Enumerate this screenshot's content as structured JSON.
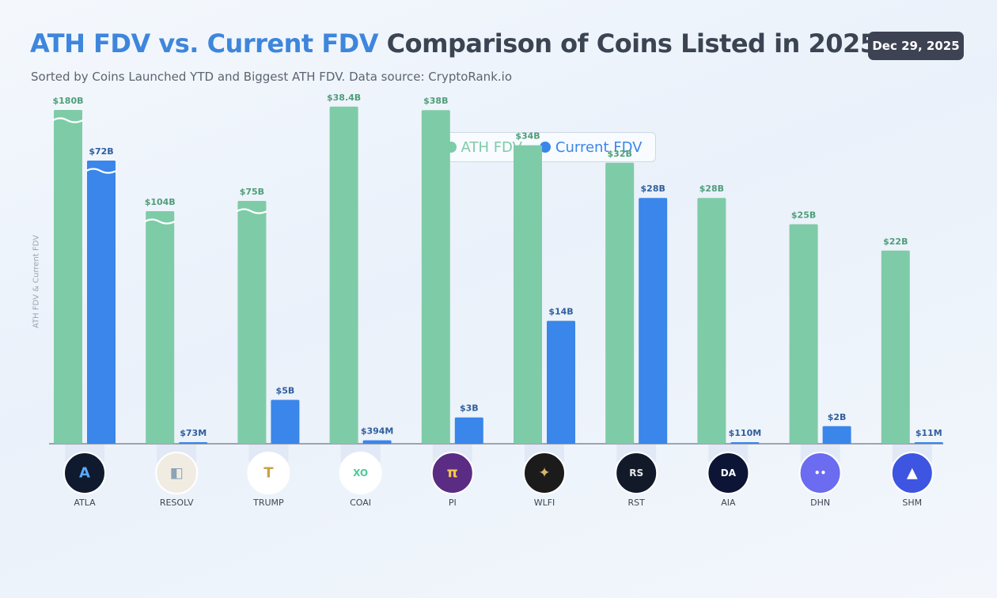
{
  "header": {
    "title_highlight": "ATH FDV vs. Current FDV",
    "title_rest": "Comparison of Coins Listed in 2025",
    "subtitle": "Sorted by Coins Launched YTD and Biggest ATH FDV. Data source: CryptoRank.io",
    "date": "Dec 29, 2025"
  },
  "colors": {
    "ath": "#7ecba8",
    "current": "#3a86ea",
    "ath_label": "#4e9e7a",
    "current_label": "#2f5f9e",
    "highlight": "#3e86dc"
  },
  "chart_data": {
    "type": "bar",
    "ylabel": "ATH FDV & Current FDV",
    "unit": "USD",
    "broken_axis_bars": [
      "ATLA ATH FDV",
      "ATLA Current FDV",
      "RESOLV ATH FDV",
      "TRUMP ATH FDV"
    ],
    "categories": [
      "ATLA",
      "RESOLV",
      "TRUMP",
      "COAI",
      "PI",
      "WLFI",
      "RST",
      "AIA",
      "DHN",
      "SHM"
    ],
    "series": [
      {
        "name": "ATH FDV",
        "values": [
          180000000000,
          104000000000,
          75000000000,
          38400000000,
          38000000000,
          34000000000,
          32000000000,
          28000000000,
          25000000000,
          22000000000
        ],
        "labels": [
          "$180B",
          "$104B",
          "$75B",
          "$38.4B",
          "$38B",
          "$34B",
          "$32B",
          "$28B",
          "$25B",
          "$22B"
        ]
      },
      {
        "name": "Current FDV",
        "values": [
          72000000000,
          73000000,
          5000000000,
          394000000,
          3000000000,
          14000000000,
          28000000000,
          110000000,
          2000000000,
          11000000
        ],
        "labels": [
          "$72B",
          "$73M",
          "$5B",
          "$394M",
          "$3B",
          "$14B",
          "$28B",
          "$110M",
          "$2B",
          "$11M"
        ]
      }
    ],
    "legend": "top-center",
    "grid": false
  },
  "coins": [
    {
      "name": "ATLA",
      "icon": "atla-logo-icon",
      "bg": "#0f1a2e",
      "fg": "#5aa9ff",
      "glyph": "A"
    },
    {
      "name": "RESOLV",
      "icon": "resolv-logo-icon",
      "bg": "#f1ece2",
      "fg": "#8aa4b8",
      "glyph": "◧"
    },
    {
      "name": "TRUMP",
      "icon": "trump-logo-icon",
      "bg": "#ffffff",
      "fg": "#c9a24a",
      "glyph": "T"
    },
    {
      "name": "COAI",
      "icon": "coai-logo-icon",
      "bg": "#ffffff",
      "fg": "#4ccb9a",
      "glyph": "XO"
    },
    {
      "name": "PI",
      "icon": "pi-logo-icon",
      "bg": "#5b2c83",
      "fg": "#f4c64f",
      "glyph": "π"
    },
    {
      "name": "WLFI",
      "icon": "wlfi-logo-icon",
      "bg": "#1b1b1b",
      "fg": "#d8b56a",
      "glyph": "✦"
    },
    {
      "name": "RST",
      "icon": "rst-logo-icon",
      "bg": "#121a2a",
      "fg": "#e8e8e8",
      "glyph": "RS"
    },
    {
      "name": "AIA",
      "icon": "aia-logo-icon",
      "bg": "#0c1536",
      "fg": "#ffffff",
      "glyph": "DA"
    },
    {
      "name": "DHN",
      "icon": "dhn-logo-icon",
      "bg": "#6b6cf0",
      "fg": "#ffffff",
      "glyph": "••"
    },
    {
      "name": "SHM",
      "icon": "shm-logo-icon",
      "bg": "#3d55e0",
      "fg": "#ffffff",
      "glyph": "▲"
    }
  ]
}
